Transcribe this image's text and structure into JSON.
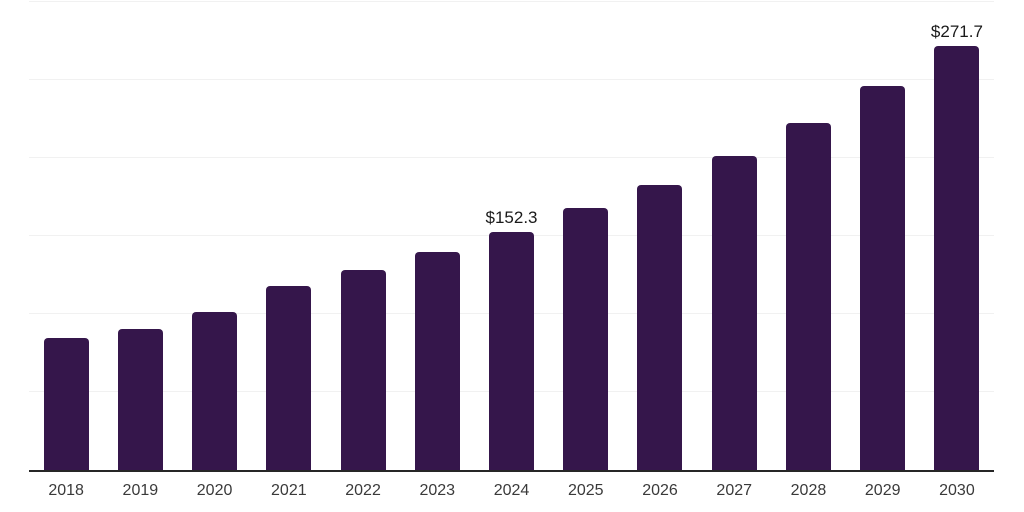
{
  "chart_data": {
    "type": "bar",
    "title": "",
    "xlabel": "",
    "ylabel": "",
    "categories": [
      "2018",
      "2019",
      "2020",
      "2021",
      "2022",
      "2023",
      "2024",
      "2025",
      "2026",
      "2027",
      "2028",
      "2029",
      "2030"
    ],
    "values": [
      84.6,
      90.7,
      101.0,
      117.7,
      128.3,
      139.6,
      152.3,
      167.7,
      182.8,
      201.6,
      222.4,
      246.2,
      271.7
    ],
    "data_labels": {
      "2024": "$152.3",
      "2030": "$271.7"
    },
    "ylim": [
      0,
      300
    ],
    "gridline_values": [
      50,
      100,
      150,
      200,
      250,
      300
    ],
    "grid": true,
    "legend": false,
    "colors": {
      "bar": "#35164B",
      "axis_line": "#262626",
      "gridline": "#F1F1F1",
      "data_label": "#1A1A1A",
      "tick_label": "#3A3A3A",
      "background": "#FFFFFF"
    }
  }
}
